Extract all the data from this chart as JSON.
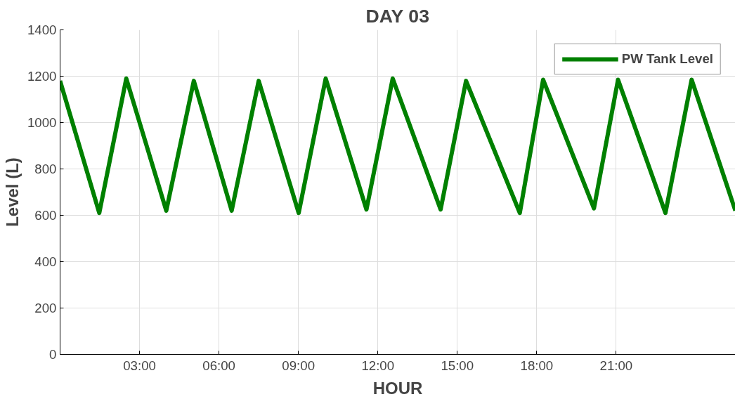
{
  "chart_data": {
    "type": "line",
    "title": "DAY 03",
    "xlabel": "HOUR",
    "ylabel": "Level (L)",
    "x": [
      0,
      1.48,
      2.5,
      4.01,
      5.05,
      6.48,
      7.5,
      9.01,
      10.03,
      11.57,
      12.56,
      14.37,
      15.33,
      17.36,
      18.24,
      20.16,
      21.07,
      22.86,
      23.85,
      25.5
    ],
    "series": [
      {
        "name": "PW Tank Level",
        "color": "#008000",
        "values": [
          1180,
          610,
          1190,
          620,
          1180,
          620,
          1180,
          610,
          1190,
          625,
          1190,
          625,
          1180,
          610,
          1185,
          630,
          1185,
          610,
          1185,
          620
        ]
      }
    ],
    "xlim": [
      0,
      25.5
    ],
    "ylim": [
      0,
      1400
    ],
    "xticks": [
      {
        "value": 3,
        "label": "03:00"
      },
      {
        "value": 6,
        "label": "06:00"
      },
      {
        "value": 9,
        "label": "09:00"
      },
      {
        "value": 12,
        "label": "12:00"
      },
      {
        "value": 15,
        "label": "15:00"
      },
      {
        "value": 18,
        "label": "18:00"
      },
      {
        "value": 21,
        "label": "21:00"
      }
    ],
    "yticks": [
      0,
      200,
      400,
      600,
      800,
      1000,
      1200,
      1400
    ],
    "grid": true,
    "legend": "top right",
    "marker": "none",
    "line_style": "solid"
  }
}
